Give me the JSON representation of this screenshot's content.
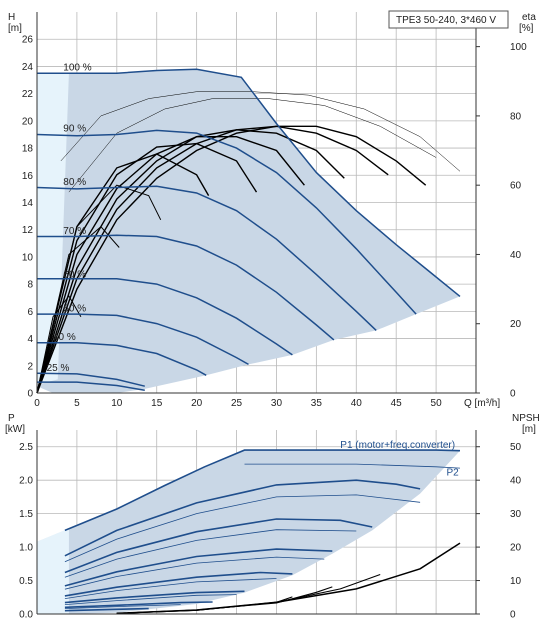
{
  "model_box": "TPE3 50-240, 3*460 V",
  "colors": {
    "curve": "#1f4e8c",
    "area": "#c9d7e6",
    "area_light": "#e6f3fb",
    "efficiency": "#000000",
    "grid": "#b9b9b9"
  },
  "chart_data": [
    {
      "type": "line",
      "name": "head",
      "xlabel": "Q [m³/h]",
      "ylabel_left_symbol": "H",
      "ylabel_left_unit": "[m]",
      "ylabel_right_symbol": "eta",
      "ylabel_right_unit": "[%]",
      "xlim": [
        0,
        55
      ],
      "ylim": [
        0,
        28
      ],
      "y2lim": [
        0,
        110
      ],
      "x_ticks": [
        0,
        5,
        10,
        15,
        20,
        25,
        30,
        35,
        40,
        45,
        50
      ],
      "y_ticks": [
        0,
        2,
        4,
        6,
        8,
        10,
        12,
        14,
        16,
        18,
        20,
        22,
        24,
        26
      ],
      "y2_ticks": [
        0,
        20,
        40,
        60,
        80,
        100
      ],
      "grid": true,
      "series": [
        {
          "name": "100 %",
          "label_pos": [
            3.3,
            23.7
          ],
          "x": [
            0,
            5,
            10,
            15,
            20,
            25.6,
            30,
            35,
            40,
            45,
            49,
            53
          ],
          "y": [
            23.5,
            23.5,
            23.5,
            23.7,
            23.8,
            23.2,
            19.8,
            16.2,
            13.4,
            10.9,
            9.0,
            7.1
          ]
        },
        {
          "name": "90 %",
          "label_pos": [
            3.3,
            19.2
          ],
          "x": [
            0,
            5,
            10,
            15,
            20,
            25,
            30,
            35,
            40,
            45,
            47.5
          ],
          "y": [
            19.0,
            18.9,
            19.0,
            19.3,
            19.1,
            18.0,
            16.2,
            13.6,
            10.6,
            7.4,
            5.8
          ]
        },
        {
          "name": "80 %",
          "label_pos": [
            3.3,
            15.3
          ],
          "x": [
            0,
            5,
            10,
            15,
            20,
            25,
            30,
            35,
            40,
            42.5
          ],
          "y": [
            15.1,
            15.0,
            15.1,
            15.2,
            14.7,
            13.4,
            11.3,
            8.7,
            6.0,
            4.6
          ]
        },
        {
          "name": "70 %",
          "label_pos": [
            3.3,
            11.7
          ],
          "x": [
            0,
            5,
            10,
            15,
            20,
            25,
            30,
            35,
            37.2
          ],
          "y": [
            11.5,
            11.5,
            11.6,
            11.5,
            10.8,
            9.4,
            7.4,
            5.0,
            3.9
          ]
        },
        {
          "name": "60 %",
          "label_pos": [
            3.3,
            8.5
          ],
          "x": [
            0,
            5,
            10,
            15,
            20,
            25,
            30,
            32
          ],
          "y": [
            8.4,
            8.4,
            8.4,
            8.0,
            7.0,
            5.5,
            3.6,
            2.8
          ]
        },
        {
          "name": "50 %",
          "label_pos": [
            3.3,
            6.0
          ],
          "x": [
            0,
            5,
            10,
            15,
            20,
            25,
            26.5
          ],
          "y": [
            5.8,
            5.8,
            5.7,
            5.1,
            4.1,
            2.6,
            2.1
          ]
        },
        {
          "name": "40 %",
          "label_pos": [
            2.0,
            3.9
          ],
          "x": [
            0,
            5,
            10,
            15,
            20,
            21.2
          ],
          "y": [
            3.7,
            3.7,
            3.5,
            2.9,
            1.7,
            1.3
          ]
        },
        {
          "name": "25 %",
          "label_pos": [
            1.2,
            1.6
          ],
          "x": [
            0,
            5,
            10,
            13.5
          ],
          "y": [
            1.45,
            1.4,
            1.0,
            0.5
          ]
        },
        {
          "name": "",
          "label_pos": [
            0.5,
            0.9
          ],
          "x": [
            0,
            5,
            10,
            13.5
          ],
          "y": [
            0.8,
            0.8,
            0.55,
            0.2
          ]
        }
      ],
      "efficiency_series_scale": [
        0,
        110
      ],
      "efficiency_series": [
        {
          "x": [
            0,
            5,
            10,
            15,
            20,
            25,
            30,
            35,
            40,
            45,
            48.7
          ],
          "y": [
            0,
            30,
            50,
            62,
            70,
            75,
            77,
            77,
            74,
            67,
            60
          ]
        },
        {
          "x": [
            0,
            5,
            10,
            15,
            20,
            25,
            30,
            35,
            40,
            44
          ],
          "y": [
            0,
            33,
            53,
            65,
            72,
            76,
            77,
            75,
            70,
            63
          ]
        },
        {
          "x": [
            0,
            5,
            10,
            15,
            20,
            25,
            30,
            35,
            38.5
          ],
          "y": [
            0,
            36,
            56,
            67,
            74,
            76,
            75,
            70,
            62
          ]
        },
        {
          "x": [
            0,
            5,
            10,
            15,
            20,
            25,
            30,
            33.5
          ],
          "y": [
            0,
            40,
            59,
            69,
            74,
            74,
            70,
            60
          ]
        },
        {
          "x": [
            0,
            5,
            10,
            15,
            20,
            25,
            27.5
          ],
          "y": [
            0,
            44,
            63,
            71,
            72,
            67,
            58
          ]
        },
        {
          "x": [
            0,
            5,
            10,
            15,
            20,
            21.5
          ],
          "y": [
            0,
            48,
            65,
            69,
            63,
            57
          ]
        },
        {
          "x": [
            0,
            5,
            10,
            14,
            15.5
          ],
          "y": [
            0,
            48,
            60,
            57,
            50
          ]
        },
        {
          "x": [
            0,
            4,
            8,
            10.3
          ],
          "y": [
            0,
            40,
            48,
            42
          ]
        },
        {
          "x": [
            0,
            2,
            4,
            5.5
          ],
          "y": [
            0,
            22,
            28,
            22
          ]
        }
      ],
      "thin_series": [
        {
          "x": [
            3,
            8,
            14,
            20,
            27,
            34,
            41,
            48,
            53
          ],
          "y": [
            67,
            80,
            85,
            87,
            87,
            86,
            82,
            74,
            64
          ]
        },
        {
          "x": [
            4,
            10,
            16,
            22,
            29,
            36,
            43,
            50
          ],
          "y": [
            58,
            75,
            82,
            85,
            85,
            83,
            77,
            68
          ]
        }
      ]
    },
    {
      "type": "line",
      "name": "power",
      "ylabel_left_symbol": "P",
      "ylabel_left_unit": "[kW]",
      "ylabel_right_symbol": "NPSH",
      "ylabel_right_unit": "[m]",
      "xlim": [
        0,
        55
      ],
      "ylim": [
        0,
        2.75
      ],
      "y2lim": [
        0,
        55
      ],
      "y_ticks": [
        0.0,
        0.5,
        1.0,
        1.5,
        2.0,
        2.5
      ],
      "y_tick_labels": [
        "0.0",
        "0.5",
        "1.0",
        "1.5",
        "2.0",
        "2.5"
      ],
      "y2_ticks": [
        0,
        10,
        20,
        30,
        40,
        50
      ],
      "grid": true,
      "series_labels": [
        {
          "name": "P1 (motor+freq.converter)",
          "label_pos": [
            38.0,
            2.48
          ]
        },
        {
          "name": "P2",
          "label_pos": [
            51.3,
            2.07
          ]
        }
      ],
      "envelope_top": {
        "x": [
          0,
          3.5,
          10,
          16,
          21,
          26,
          30,
          40,
          50,
          53
        ],
        "y": [
          1.08,
          1.25,
          1.57,
          1.92,
          2.2,
          2.45,
          2.45,
          2.45,
          2.45,
          2.44
        ]
      },
      "p1_series": [
        {
          "x": [
            3.5,
            10,
            16,
            21,
            26,
            30,
            40,
            50,
            53
          ],
          "y": [
            1.25,
            1.57,
            1.92,
            2.2,
            2.45,
            2.45,
            2.45,
            2.45,
            2.44
          ]
        },
        {
          "x": [
            3.5,
            10,
            20,
            30,
            40,
            45,
            48
          ],
          "y": [
            0.87,
            1.25,
            1.66,
            1.93,
            2.0,
            1.94,
            1.87
          ]
        },
        {
          "x": [
            3.5,
            10,
            20,
            30,
            38,
            42
          ],
          "y": [
            0.62,
            0.92,
            1.23,
            1.42,
            1.4,
            1.3
          ]
        },
        {
          "x": [
            3.5,
            10,
            20,
            30,
            37
          ],
          "y": [
            0.42,
            0.63,
            0.86,
            0.97,
            0.94
          ]
        },
        {
          "x": [
            3.5,
            10,
            20,
            28,
            32
          ],
          "y": [
            0.27,
            0.4,
            0.55,
            0.62,
            0.6
          ]
        },
        {
          "x": [
            3.5,
            10,
            20,
            26
          ],
          "y": [
            0.17,
            0.24,
            0.32,
            0.34
          ]
        },
        {
          "x": [
            3.5,
            10,
            18,
            22
          ],
          "y": [
            0.1,
            0.13,
            0.17,
            0.18
          ]
        },
        {
          "x": [
            3.5,
            10,
            14
          ],
          "y": [
            0.05,
            0.07,
            0.08
          ]
        }
      ],
      "p2_series": [
        {
          "x": [
            26,
            30,
            40,
            50,
            53
          ],
          "y": [
            2.24,
            2.24,
            2.24,
            2.2,
            2.18
          ]
        },
        {
          "x": [
            3.5,
            10,
            20,
            30,
            40,
            48
          ],
          "y": [
            0.78,
            1.12,
            1.5,
            1.75,
            1.78,
            1.67
          ]
        },
        {
          "x": [
            3.5,
            10,
            20,
            30,
            40
          ],
          "y": [
            0.55,
            0.82,
            1.1,
            1.26,
            1.24
          ]
        },
        {
          "x": [
            3.5,
            10,
            20,
            30,
            36
          ],
          "y": [
            0.37,
            0.56,
            0.76,
            0.85,
            0.82
          ]
        },
        {
          "x": [
            3.5,
            10,
            20,
            30
          ],
          "y": [
            0.23,
            0.35,
            0.48,
            0.53
          ]
        },
        {
          "x": [
            3.5,
            10,
            20,
            25
          ],
          "y": [
            0.14,
            0.2,
            0.28,
            0.29
          ]
        },
        {
          "x": [
            3.5,
            10,
            18
          ],
          "y": [
            0.08,
            0.11,
            0.14
          ]
        }
      ],
      "npsh_series_scale": [
        0,
        55
      ],
      "npsh_series": [
        {
          "x": [
            10,
            20,
            30,
            40,
            48,
            53
          ],
          "y": [
            0.2,
            1.2,
            3.5,
            7.5,
            13.5,
            21.2
          ]
        },
        {
          "x": [
            10,
            20,
            30,
            38,
            43
          ],
          "y": [
            0.2,
            1.2,
            3.5,
            7.5,
            11.8
          ]
        },
        {
          "x": [
            10,
            20,
            30,
            35,
            37
          ],
          "y": [
            0.2,
            1.2,
            3.3,
            6.5,
            8.1
          ]
        },
        {
          "x": [
            10,
            20,
            30,
            32
          ],
          "y": [
            0.2,
            1.1,
            3.5,
            5.1
          ]
        },
        {
          "x": [
            10,
            20,
            26
          ],
          "y": [
            0.2,
            1.1,
            2.5
          ]
        }
      ]
    }
  ]
}
